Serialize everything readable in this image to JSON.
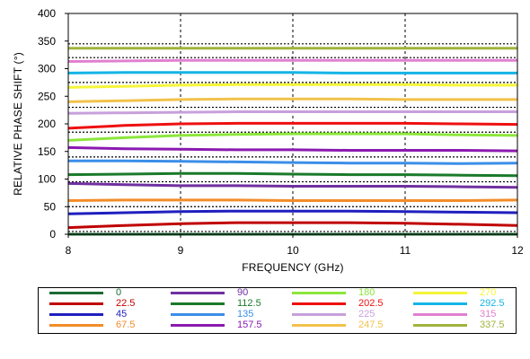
{
  "chart_data": {
    "type": "line",
    "xlabel": "FREQUENCY (GHz)",
    "ylabel": "RELATIVE PHASE SHIFT  (°)",
    "xlim": [
      8,
      12
    ],
    "ylim": [
      0,
      400
    ],
    "x_ticks": [
      "8",
      "9",
      "10",
      "11",
      "12"
    ],
    "y_ticks": [
      "0",
      "50",
      "100",
      "150",
      "200",
      "250",
      "300",
      "350",
      "400"
    ],
    "vertical_gridlines_at_x": [
      9,
      10,
      11
    ],
    "dotted_reference_lines_y": [
      5,
      50,
      95,
      140,
      185,
      230,
      275,
      320,
      345
    ],
    "x": [
      8,
      8.5,
      9,
      9.5,
      10,
      10.5,
      11,
      11.5,
      12
    ],
    "legend_placement": "bottom",
    "series": [
      {
        "name": "0",
        "color": "#1a6b34",
        "values": [
          0,
          0,
          0,
          0,
          0,
          0,
          0,
          0,
          0
        ]
      },
      {
        "name": "22.5",
        "color": "#c00000",
        "values": [
          12,
          16,
          19,
          21,
          21,
          21,
          20,
          18,
          16
        ]
      },
      {
        "name": "45",
        "color": "#1f1fbf",
        "values": [
          37,
          39,
          41,
          42,
          42,
          42,
          41,
          40,
          39
        ]
      },
      {
        "name": "67.5",
        "color": "#f28c28",
        "values": [
          61,
          62,
          62,
          62,
          61,
          61,
          61,
          61,
          62
        ]
      },
      {
        "name": "90",
        "color": "#7030a0",
        "values": [
          92,
          90,
          88,
          88,
          87,
          87,
          87,
          86,
          85
        ]
      },
      {
        "name": "112.5",
        "color": "#1a7a2a",
        "values": [
          108,
          109,
          110,
          110,
          109,
          108,
          108,
          107,
          106
        ]
      },
      {
        "name": "135",
        "color": "#3b8ee8",
        "values": [
          133,
          133,
          132,
          131,
          130,
          129,
          129,
          128,
          129
        ]
      },
      {
        "name": "157.5",
        "color": "#8b1ab0",
        "values": [
          157,
          155,
          154,
          153,
          153,
          152,
          152,
          152,
          151
        ]
      },
      {
        "name": "180",
        "color": "#8ce63c",
        "values": [
          170,
          175,
          179,
          181,
          182,
          182,
          182,
          180,
          179
        ]
      },
      {
        "name": "202.5",
        "color": "#ee1010",
        "values": [
          192,
          197,
          200,
          201,
          201,
          201,
          201,
          200,
          199
        ]
      },
      {
        "name": "225",
        "color": "#c8a0dc",
        "values": [
          219,
          220,
          221,
          222,
          222,
          222,
          222,
          222,
          222
        ]
      },
      {
        "name": "247.5",
        "color": "#f2c24b",
        "values": [
          240,
          242,
          244,
          245,
          245,
          245,
          244,
          244,
          244
        ]
      },
      {
        "name": "270",
        "color": "#f5f53a",
        "values": [
          266,
          268,
          270,
          271,
          271,
          271,
          271,
          270,
          270
        ]
      },
      {
        "name": "292.5",
        "color": "#14b4e6",
        "values": [
          292,
          293,
          293,
          293,
          293,
          292,
          292,
          292,
          292
        ]
      },
      {
        "name": "315",
        "color": "#e080d0",
        "values": [
          313,
          314,
          315,
          315,
          315,
          315,
          315,
          315,
          315
        ]
      },
      {
        "name": "337.5",
        "color": "#a0b43c",
        "values": [
          337,
          337,
          337,
          337,
          337,
          337,
          337,
          337,
          337
        ]
      }
    ]
  }
}
